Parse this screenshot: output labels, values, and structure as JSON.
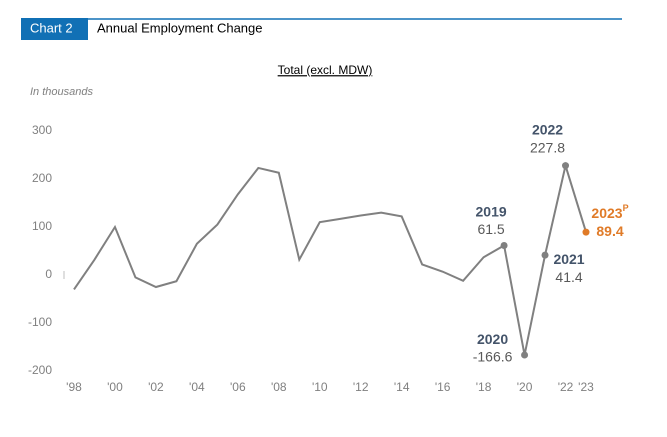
{
  "header": {
    "badge": "Chart 2",
    "title": "Annual Employment Change"
  },
  "chart_data": {
    "type": "line",
    "title": "Total (excl. MDW)",
    "ylabel": "In thousands",
    "x": [
      1998,
      1999,
      2000,
      2001,
      2002,
      2003,
      2004,
      2005,
      2006,
      2007,
      2008,
      2009,
      2010,
      2011,
      2012,
      2013,
      2014,
      2015,
      2016,
      2017,
      2018,
      2019,
      2020,
      2021,
      2022,
      2023
    ],
    "series": [
      {
        "name": "Total (excl. MDW)",
        "color": "#808080",
        "values": [
          -30,
          32,
          100,
          -5,
          -25,
          -13,
          65,
          105,
          168,
          223,
          213,
          32,
          110,
          117,
          124,
          130,
          122,
          22,
          7,
          -12,
          37,
          61.5,
          -166.6,
          41.4,
          227.8,
          89.4
        ]
      }
    ],
    "xlim": [
      1998,
      2023
    ],
    "xticks": [
      {
        "value": 1998,
        "label": "'98"
      },
      {
        "value": 2000,
        "label": "'00"
      },
      {
        "value": 2002,
        "label": "'02"
      },
      {
        "value": 2004,
        "label": "'04"
      },
      {
        "value": 2006,
        "label": "'06"
      },
      {
        "value": 2008,
        "label": "'08"
      },
      {
        "value": 2010,
        "label": "'10"
      },
      {
        "value": 2012,
        "label": "'12"
      },
      {
        "value": 2014,
        "label": "'14"
      },
      {
        "value": 2016,
        "label": "'16"
      },
      {
        "value": 2018,
        "label": "'18"
      },
      {
        "value": 2020,
        "label": "'20"
      },
      {
        "value": 2022,
        "label": "'22"
      },
      {
        "value": 2023,
        "label": "'23"
      }
    ],
    "ylim": [
      -200,
      300
    ],
    "yticks": [
      -200,
      -100,
      0,
      100,
      200,
      300
    ],
    "annotations": [
      {
        "text": "2019",
        "x": 2019
      },
      {
        "text": "2020",
        "x": 2020
      },
      {
        "text": "2021",
        "x": 2021
      },
      {
        "text": "2022",
        "x": 2022
      },
      {
        "text": "2023",
        "sup": "P",
        "x": 2023,
        "color": "#e07b28"
      }
    ]
  }
}
